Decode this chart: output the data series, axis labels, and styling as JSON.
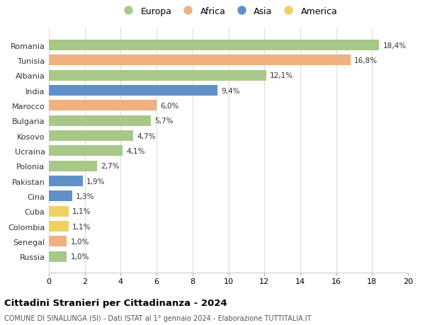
{
  "countries": [
    "Romania",
    "Tunisia",
    "Albania",
    "India",
    "Marocco",
    "Bulgaria",
    "Kosovo",
    "Ucraina",
    "Polonia",
    "Pakistan",
    "Cina",
    "Cuba",
    "Colombia",
    "Senegal",
    "Russia"
  ],
  "values": [
    18.4,
    16.8,
    12.1,
    9.4,
    6.0,
    5.7,
    4.7,
    4.1,
    2.7,
    1.9,
    1.3,
    1.1,
    1.1,
    1.0,
    1.0
  ],
  "labels": [
    "18,4%",
    "16,8%",
    "12,1%",
    "9,4%",
    "6,0%",
    "5,7%",
    "4,7%",
    "4,1%",
    "2,7%",
    "1,9%",
    "1,3%",
    "1,1%",
    "1,1%",
    "1,0%",
    "1,0%"
  ],
  "continents": [
    "Europa",
    "Africa",
    "Europa",
    "Asia",
    "Africa",
    "Europa",
    "Europa",
    "Europa",
    "Europa",
    "Asia",
    "Asia",
    "America",
    "America",
    "Africa",
    "Europa"
  ],
  "continent_colors": {
    "Europa": "#a8c888",
    "Africa": "#f0b080",
    "Asia": "#6090c8",
    "America": "#f0d060"
  },
  "legend_order": [
    "Europa",
    "Africa",
    "Asia",
    "America"
  ],
  "title": "Cittadini Stranieri per Cittadinanza - 2024",
  "subtitle": "COMUNE DI SINALUNGA (SI) - Dati ISTAT al 1° gennaio 2024 - Elaborazione TUTTITALIA.IT",
  "xlim": [
    0,
    20
  ],
  "xticks": [
    0,
    2,
    4,
    6,
    8,
    10,
    12,
    14,
    16,
    18,
    20
  ],
  "background_color": "#ffffff",
  "grid_color": "#dddddd",
  "bar_height": 0.7
}
